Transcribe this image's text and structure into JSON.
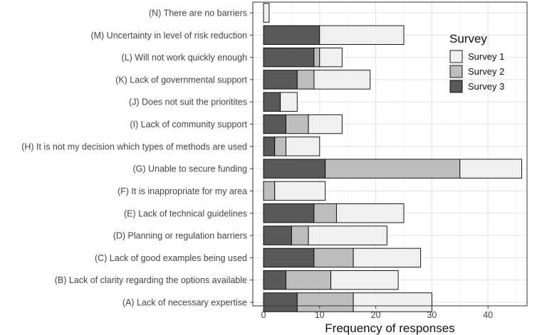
{
  "chart_data": {
    "type": "bar",
    "orientation": "horizontal",
    "stacked": true,
    "xlabel": "Frequency of responses",
    "ylabel": "",
    "xlim": [
      0,
      47
    ],
    "xticks": [
      0,
      10,
      20,
      30,
      40
    ],
    "grid": true,
    "legend_title": "Survey",
    "legend_position": "top-right",
    "categories": [
      "(N) There are no barriers",
      "(M) Uncertainty in level of risk reduction",
      "(L) Will not work quickly enough",
      "(K) Lack of governmental support",
      "(J) Does not suit the prioritites",
      "(I) Lack of community support",
      "(H) It is not my decision which types of methods are used",
      "(G) Unable to secure funding",
      "(F) It is inappropriate for my area",
      "(E) Lack of technical guidelines",
      "(D) Planning or regulation barriers",
      "(C) Lack of good examples being used",
      "(B) Lack of clarity regarding the options available",
      "(A) Lack of necessary expertise"
    ],
    "series": [
      {
        "name": "Survey 3",
        "color": "#595959",
        "values": [
          0,
          10,
          9,
          6,
          3,
          4,
          2,
          11,
          0,
          9,
          5,
          9,
          4,
          6
        ]
      },
      {
        "name": "Survey 2",
        "color": "#bdbdbd",
        "values": [
          0,
          0,
          1,
          3,
          0,
          4,
          2,
          24,
          2,
          4,
          3,
          7,
          8,
          10
        ]
      },
      {
        "name": "Survey 1",
        "color": "#f0f0f0",
        "values": [
          1,
          15,
          4,
          10,
          3,
          6,
          6,
          11,
          9,
          12,
          14,
          12,
          12,
          14
        ]
      }
    ],
    "legend_order": [
      "Survey 1",
      "Survey 2",
      "Survey 3"
    ]
  }
}
